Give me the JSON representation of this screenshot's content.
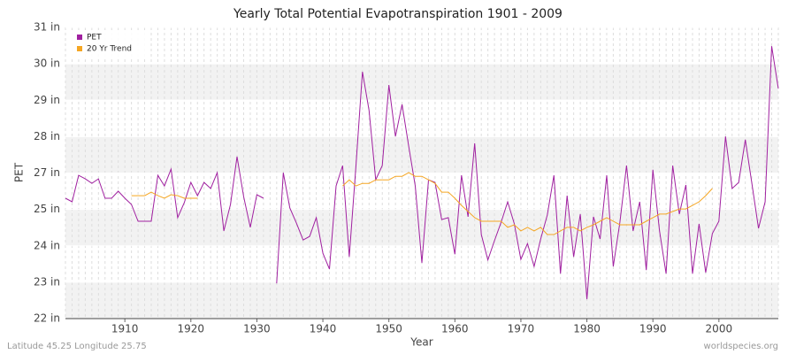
{
  "chart_data": {
    "type": "line",
    "title": "Yearly Total Potential Evapotranspiration 1901 - 2009",
    "ylabel": "PET",
    "xlabel": "Year",
    "footer_left": "Latitude 45.25 Longitude 25.75",
    "footer_right": "worldspecies.org",
    "legend": "top-left",
    "grid": true,
    "xlim": [
      1901,
      2009
    ],
    "xticks": [
      1910,
      1920,
      1930,
      1940,
      1950,
      1960,
      1970,
      1980,
      1990,
      2000
    ],
    "ylim": [
      22,
      31
    ],
    "yticks": [
      {
        "value": 22,
        "label": "22 in"
      },
      {
        "value": 23.125,
        "label": "23 in"
      },
      {
        "value": 24.25,
        "label": "24 in"
      },
      {
        "value": 25.375,
        "label": "25 in"
      },
      {
        "value": 26.5,
        "label": "27 in"
      },
      {
        "value": 27.625,
        "label": "28 in"
      },
      {
        "value": 28.75,
        "label": "29 in"
      },
      {
        "value": 29.875,
        "label": "30 in"
      },
      {
        "value": 31,
        "label": "31 in"
      }
    ],
    "x": [
      1901,
      1902,
      1903,
      1904,
      1905,
      1906,
      1907,
      1908,
      1909,
      1910,
      1911,
      1912,
      1913,
      1914,
      1915,
      1916,
      1917,
      1918,
      1919,
      1920,
      1921,
      1922,
      1923,
      1924,
      1925,
      1926,
      1927,
      1928,
      1929,
      1930,
      1931,
      1932,
      1933,
      1934,
      1935,
      1936,
      1937,
      1938,
      1939,
      1940,
      1941,
      1942,
      1943,
      1944,
      1945,
      1946,
      1947,
      1948,
      1949,
      1950,
      1951,
      1952,
      1953,
      1954,
      1955,
      1956,
      1957,
      1958,
      1959,
      1960,
      1961,
      1962,
      1963,
      1964,
      1965,
      1966,
      1967,
      1968,
      1969,
      1970,
      1971,
      1972,
      1973,
      1974,
      1975,
      1976,
      1977,
      1978,
      1979,
      1980,
      1981,
      1982,
      1983,
      1984,
      1985,
      1986,
      1987,
      1988,
      1989,
      1990,
      1991,
      1992,
      1993,
      1994,
      1995,
      1996,
      1997,
      1998,
      1999,
      2000,
      2001,
      2002,
      2003,
      2004,
      2005,
      2006,
      2007,
      2008,
      2009
    ],
    "series": [
      {
        "name": "PET",
        "color": "#a020a0",
        "values": [
          25.72,
          25.61,
          26.43,
          26.32,
          26.18,
          26.32,
          25.72,
          25.72,
          25.94,
          25.72,
          25.53,
          25.01,
          25.01,
          25.01,
          26.43,
          26.1,
          26.62,
          25.12,
          25.58,
          26.21,
          25.8,
          26.21,
          26.02,
          26.51,
          24.71,
          25.53,
          27.01,
          25.77,
          24.82,
          25.83,
          25.72,
          null,
          23.09,
          26.51,
          25.42,
          24.95,
          24.43,
          24.54,
          25.12,
          24.02,
          23.53,
          26.1,
          26.73,
          23.91,
          26.7,
          29.63,
          28.43,
          26.29,
          26.73,
          29.22,
          27.63,
          28.62,
          27.33,
          26.1,
          23.72,
          26.29,
          26.21,
          25.06,
          25.12,
          23.99,
          26.43,
          25.15,
          27.42,
          24.6,
          23.81,
          24.41,
          24.98,
          25.61,
          24.93,
          23.83,
          24.32,
          23.61,
          24.46,
          25.2,
          26.43,
          23.39,
          25.8,
          23.91,
          25.23,
          22.6,
          25.15,
          24.46,
          26.43,
          23.61,
          24.98,
          26.73,
          24.71,
          25.61,
          23.5,
          26.6,
          24.71,
          23.39,
          26.73,
          25.23,
          26.13,
          23.39,
          24.93,
          23.42,
          24.63,
          25.01,
          27.63,
          26.02,
          26.21,
          27.53,
          26.18,
          24.79,
          25.61,
          30.42,
          29.11
        ]
      },
      {
        "name": "20 Yr Trend",
        "color": "#f5a623",
        "values": [
          null,
          null,
          null,
          null,
          null,
          null,
          null,
          null,
          null,
          null,
          25.8,
          25.8,
          25.8,
          25.91,
          25.8,
          25.72,
          25.83,
          25.8,
          25.72,
          25.72,
          25.72,
          null,
          null,
          null,
          null,
          null,
          null,
          null,
          null,
          null,
          null,
          null,
          null,
          null,
          null,
          null,
          null,
          null,
          null,
          null,
          null,
          null,
          26.1,
          26.29,
          26.1,
          26.18,
          26.18,
          26.29,
          26.29,
          26.29,
          26.4,
          26.4,
          26.51,
          26.4,
          26.4,
          26.29,
          26.18,
          25.91,
          25.91,
          25.72,
          25.5,
          25.31,
          25.12,
          25.01,
          25.01,
          25.01,
          25.01,
          24.82,
          24.9,
          24.71,
          24.82,
          24.71,
          24.82,
          24.6,
          24.6,
          24.71,
          24.82,
          24.82,
          24.71,
          24.82,
          24.9,
          25.01,
          25.12,
          25.01,
          24.9,
          24.9,
          24.9,
          24.9,
          25.01,
          25.12,
          25.23,
          25.23,
          25.31,
          25.39,
          25.39,
          25.5,
          25.61,
          25.8,
          26.02,
          null,
          null,
          null,
          null,
          null,
          null,
          null,
          null,
          null,
          null
        ]
      }
    ]
  }
}
